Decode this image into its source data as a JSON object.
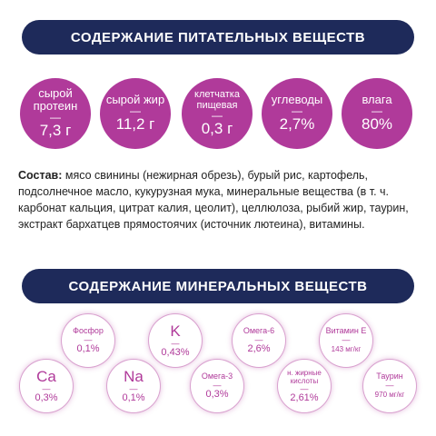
{
  "nutrition_header": "СОДЕРЖАНИЕ ПИТАТЕЛЬНЫХ ВЕЩЕСТВ",
  "nutrients": [
    {
      "label": "сырой протеин",
      "dash": "—",
      "value": "7,3 г"
    },
    {
      "label": "сырой жир",
      "dash": "—",
      "value": "11,2 г"
    },
    {
      "label": "клетчатка пищевая",
      "dash": "—",
      "value": "0,3 г"
    },
    {
      "label": "углеводы",
      "dash": "—",
      "value": "2,7%"
    },
    {
      "label": "влага",
      "dash": "—",
      "value": "80%"
    }
  ],
  "composition": {
    "label": "Состав:",
    "text": " мясо свинины (нежирная обрезь), бурый рис, картофель, подсолнечное масло, кукурузная мука, минеральные вещества (в т. ч. карбонат кальция, цитрат калия, цеолит), целлюлоза, рыбий жир, таурин, экстракт бархатцев прямостоячих (источник лютеина), витамины."
  },
  "minerals_header": "СОДЕРЖАНИЕ МИНЕРАЛЬНЫХ ВЕЩЕСТВ",
  "minerals": [
    {
      "label": "Фосфор",
      "dash": "—",
      "value": "0,1%"
    },
    {
      "label": "K",
      "dash": "—",
      "value": "0,43%"
    },
    {
      "label": "Омега-6",
      "dash": "—",
      "value": "2,6%"
    },
    {
      "label": "Витамин Е",
      "dash": "—",
      "value": "143 мг/кг"
    },
    {
      "label": "Ca",
      "dash": "—",
      "value": "0,3%"
    },
    {
      "label": "Na",
      "dash": "—",
      "value": "0,1%"
    },
    {
      "label": "Омега-3",
      "dash": "—",
      "value": "0,3%"
    },
    {
      "label": "н. жирные кислоты",
      "dash": "—",
      "value": "2,61%"
    },
    {
      "label": "Таурин",
      "dash": "—",
      "value": "970 мг/кг"
    }
  ],
  "colors": {
    "banner": "#1e2a5a",
    "accent": "#b03a9a",
    "text": "#222222"
  }
}
